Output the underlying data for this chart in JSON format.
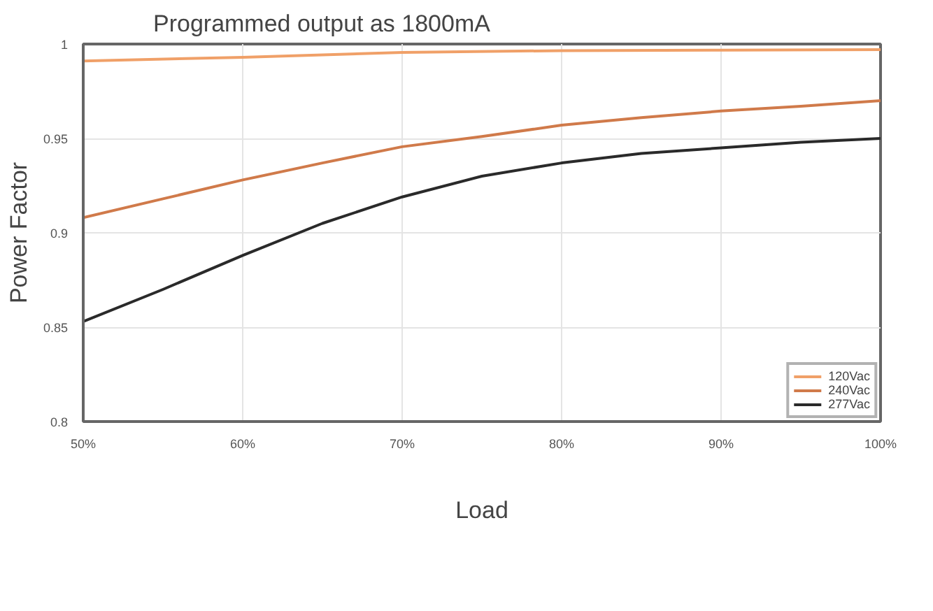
{
  "chart_data": {
    "type": "line",
    "title": "Programmed output as 1800mA",
    "xlabel": "Load",
    "ylabel": "Power Factor",
    "xlim": [
      50,
      100
    ],
    "ylim": [
      0.8,
      1
    ],
    "xticks": [
      {
        "value": 50,
        "label": "50%"
      },
      {
        "value": 60,
        "label": "60%"
      },
      {
        "value": 70,
        "label": "70%"
      },
      {
        "value": 80,
        "label": "80%"
      },
      {
        "value": 90,
        "label": "90%"
      },
      {
        "value": 100,
        "label": "100%"
      }
    ],
    "yticks": [
      0.8,
      0.85,
      0.9,
      0.95,
      1
    ],
    "grid": true,
    "legend": "bottom right",
    "marker": "none",
    "line_style": "solid",
    "series": [
      {
        "name": "120Vac",
        "color": "#f0a068",
        "x": [
          50,
          60,
          70,
          80,
          90,
          100
        ],
        "values": [
          0.991,
          0.993,
          0.9956,
          0.9965,
          0.9968,
          0.997
        ]
      },
      {
        "name": "240Vac",
        "color": "#d07a4a",
        "x": [
          50,
          55,
          60,
          65,
          70,
          75,
          80,
          85,
          90,
          95,
          100
        ],
        "values": [
          0.908,
          0.918,
          0.928,
          0.937,
          0.9456,
          0.951,
          0.957,
          0.961,
          0.9645,
          0.967,
          0.97
        ]
      },
      {
        "name": "277Vac",
        "color": "#2a2a2a",
        "x": [
          50,
          55,
          60,
          65,
          70,
          75,
          80,
          85,
          90,
          95,
          100
        ],
        "values": [
          0.853,
          0.87,
          0.888,
          0.905,
          0.919,
          0.93,
          0.937,
          0.942,
          0.945,
          0.948,
          0.95
        ]
      }
    ]
  }
}
